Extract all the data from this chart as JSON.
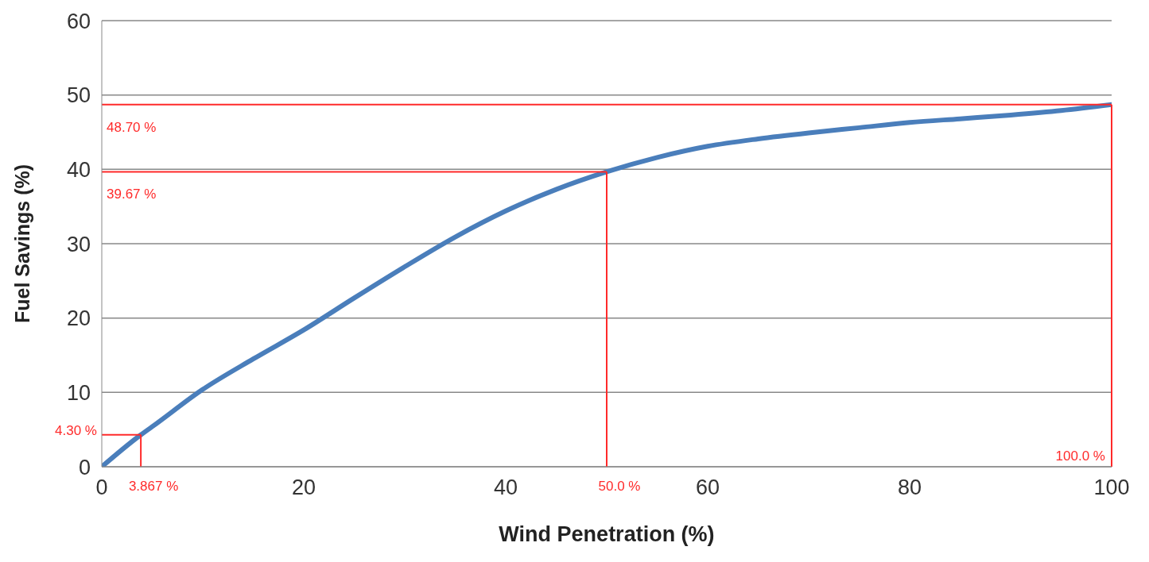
{
  "chart_data": {
    "type": "line",
    "xlabel": "Wind Penetration (%)",
    "ylabel": "Fuel Savings  (%)",
    "series": [
      {
        "color": "#4a7ebb",
        "x": [
          0,
          3.867,
          5,
          10,
          15,
          20,
          25,
          30,
          35,
          40,
          45,
          50,
          55,
          60,
          65,
          70,
          75,
          80,
          85,
          90,
          95,
          100
        ],
        "values": [
          0,
          4.3,
          5.4,
          10.4,
          14.5,
          18.4,
          22.7,
          26.9,
          30.9,
          34.4,
          37.3,
          39.67,
          41.6,
          43.1,
          44.1,
          44.9,
          45.6,
          46.3,
          46.8,
          47.3,
          47.9,
          48.7
        ]
      }
    ],
    "xlim": [
      0,
      100
    ],
    "xticks": [
      0,
      20,
      40,
      60,
      80,
      100
    ],
    "ylim": [
      0,
      60
    ],
    "yticks": [
      0,
      10,
      20,
      30,
      40,
      50,
      60
    ],
    "grid": "y",
    "marker": "none",
    "line_style": "solid",
    "ref_lines": [
      {
        "axis": "y",
        "value": 48.7,
        "label": "48.70 %",
        "color": "#ff2a2a"
      },
      {
        "axis": "y",
        "value": 39.67,
        "label": "39.67 %",
        "color": "#ff2a2a"
      },
      {
        "axis": "y",
        "value": 4.3,
        "label": "4.30 %",
        "color": "#ff2a2a"
      },
      {
        "axis": "x",
        "value": 3.867,
        "label": "3.867 %",
        "color": "#ff2a2a"
      },
      {
        "axis": "x",
        "value": 50,
        "label": "50.0 %",
        "color": "#ff2a2a"
      },
      {
        "axis": "x",
        "value": 100,
        "label": "100.0 %",
        "color": "#ff2a2a"
      }
    ]
  }
}
